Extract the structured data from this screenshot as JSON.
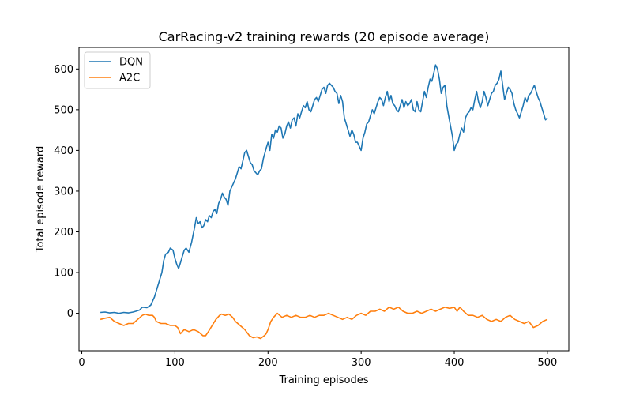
{
  "chart_data": {
    "type": "line",
    "title": "CarRacing-v2 training rewards (20 episode average)",
    "xlabel": "Training episodes",
    "ylabel": "Total episode reward",
    "xlim": [
      -3,
      523
    ],
    "ylim": [
      -92,
      653
    ],
    "xticks": [
      0,
      100,
      200,
      300,
      400,
      500
    ],
    "yticks": [
      0,
      100,
      200,
      300,
      400,
      500,
      600
    ],
    "grid": false,
    "legend": "top-left",
    "series": [
      {
        "name": "DQN",
        "color": "#1f77b4",
        "points": [
          [
            20,
            2
          ],
          [
            25,
            3
          ],
          [
            30,
            1
          ],
          [
            35,
            2
          ],
          [
            40,
            0
          ],
          [
            45,
            2
          ],
          [
            50,
            1
          ],
          [
            55,
            3
          ],
          [
            58,
            5
          ],
          [
            62,
            8
          ],
          [
            65,
            15
          ],
          [
            70,
            14
          ],
          [
            74,
            20
          ],
          [
            78,
            40
          ],
          [
            82,
            70
          ],
          [
            86,
            100
          ],
          [
            88,
            130
          ],
          [
            90,
            145
          ],
          [
            93,
            150
          ],
          [
            95,
            160
          ],
          [
            98,
            155
          ],
          [
            100,
            135
          ],
          [
            102,
            120
          ],
          [
            104,
            110
          ],
          [
            106,
            125
          ],
          [
            108,
            140
          ],
          [
            110,
            155
          ],
          [
            112,
            160
          ],
          [
            115,
            150
          ],
          [
            118,
            175
          ],
          [
            121,
            210
          ],
          [
            123,
            235
          ],
          [
            125,
            220
          ],
          [
            127,
            225
          ],
          [
            129,
            210
          ],
          [
            131,
            215
          ],
          [
            133,
            230
          ],
          [
            135,
            225
          ],
          [
            137,
            240
          ],
          [
            139,
            235
          ],
          [
            141,
            250
          ],
          [
            143,
            255
          ],
          [
            145,
            245
          ],
          [
            147,
            270
          ],
          [
            149,
            280
          ],
          [
            151,
            295
          ],
          [
            153,
            285
          ],
          [
            155,
            280
          ],
          [
            157,
            265
          ],
          [
            159,
            300
          ],
          [
            161,
            310
          ],
          [
            163,
            320
          ],
          [
            165,
            330
          ],
          [
            167,
            345
          ],
          [
            169,
            360
          ],
          [
            171,
            355
          ],
          [
            173,
            375
          ],
          [
            175,
            395
          ],
          [
            177,
            400
          ],
          [
            179,
            385
          ],
          [
            181,
            370
          ],
          [
            183,
            365
          ],
          [
            185,
            350
          ],
          [
            187,
            345
          ],
          [
            189,
            340
          ],
          [
            191,
            350
          ],
          [
            193,
            355
          ],
          [
            195,
            380
          ],
          [
            198,
            405
          ],
          [
            200,
            420
          ],
          [
            202,
            400
          ],
          [
            204,
            440
          ],
          [
            206,
            430
          ],
          [
            208,
            450
          ],
          [
            210,
            445
          ],
          [
            212,
            460
          ],
          [
            214,
            455
          ],
          [
            216,
            430
          ],
          [
            218,
            440
          ],
          [
            220,
            460
          ],
          [
            222,
            470
          ],
          [
            224,
            455
          ],
          [
            226,
            475
          ],
          [
            228,
            480
          ],
          [
            230,
            460
          ],
          [
            232,
            490
          ],
          [
            234,
            480
          ],
          [
            236,
            495
          ],
          [
            238,
            510
          ],
          [
            240,
            505
          ],
          [
            242,
            520
          ],
          [
            244,
            500
          ],
          [
            246,
            495
          ],
          [
            248,
            510
          ],
          [
            250,
            525
          ],
          [
            252,
            530
          ],
          [
            254,
            520
          ],
          [
            256,
            535
          ],
          [
            258,
            550
          ],
          [
            260,
            555
          ],
          [
            262,
            540
          ],
          [
            264,
            560
          ],
          [
            266,
            565
          ],
          [
            268,
            560
          ],
          [
            270,
            555
          ],
          [
            272,
            545
          ],
          [
            274,
            540
          ],
          [
            276,
            515
          ],
          [
            278,
            535
          ],
          [
            280,
            520
          ],
          [
            282,
            480
          ],
          [
            284,
            465
          ],
          [
            286,
            450
          ],
          [
            288,
            435
          ],
          [
            290,
            450
          ],
          [
            292,
            440
          ],
          [
            294,
            420
          ],
          [
            296,
            420
          ],
          [
            298,
            410
          ],
          [
            300,
            400
          ],
          [
            302,
            430
          ],
          [
            304,
            445
          ],
          [
            306,
            465
          ],
          [
            308,
            470
          ],
          [
            310,
            485
          ],
          [
            312,
            500
          ],
          [
            314,
            490
          ],
          [
            316,
            505
          ],
          [
            318,
            520
          ],
          [
            320,
            530
          ],
          [
            322,
            525
          ],
          [
            324,
            510
          ],
          [
            326,
            530
          ],
          [
            328,
            545
          ],
          [
            330,
            520
          ],
          [
            332,
            535
          ],
          [
            334,
            515
          ],
          [
            336,
            510
          ],
          [
            338,
            500
          ],
          [
            340,
            495
          ],
          [
            342,
            510
          ],
          [
            344,
            525
          ],
          [
            346,
            505
          ],
          [
            348,
            520
          ],
          [
            350,
            510
          ],
          [
            352,
            515
          ],
          [
            354,
            525
          ],
          [
            356,
            500
          ],
          [
            358,
            495
          ],
          [
            360,
            520
          ],
          [
            362,
            500
          ],
          [
            364,
            495
          ],
          [
            366,
            520
          ],
          [
            368,
            545
          ],
          [
            370,
            530
          ],
          [
            372,
            555
          ],
          [
            374,
            575
          ],
          [
            376,
            570
          ],
          [
            378,
            590
          ],
          [
            380,
            610
          ],
          [
            382,
            600
          ],
          [
            384,
            575
          ],
          [
            386,
            540
          ],
          [
            388,
            555
          ],
          [
            390,
            560
          ],
          [
            392,
            510
          ],
          [
            394,
            485
          ],
          [
            396,
            460
          ],
          [
            398,
            435
          ],
          [
            400,
            400
          ],
          [
            402,
            415
          ],
          [
            404,
            420
          ],
          [
            406,
            440
          ],
          [
            408,
            455
          ],
          [
            410,
            445
          ],
          [
            412,
            480
          ],
          [
            414,
            490
          ],
          [
            416,
            495
          ],
          [
            418,
            505
          ],
          [
            420,
            500
          ],
          [
            422,
            525
          ],
          [
            424,
            545
          ],
          [
            426,
            520
          ],
          [
            428,
            505
          ],
          [
            430,
            520
          ],
          [
            432,
            545
          ],
          [
            434,
            530
          ],
          [
            436,
            510
          ],
          [
            438,
            525
          ],
          [
            440,
            540
          ],
          [
            442,
            545
          ],
          [
            444,
            560
          ],
          [
            446,
            565
          ],
          [
            448,
            575
          ],
          [
            450,
            595
          ],
          [
            452,
            560
          ],
          [
            454,
            525
          ],
          [
            456,
            540
          ],
          [
            458,
            555
          ],
          [
            460,
            550
          ],
          [
            462,
            540
          ],
          [
            464,
            515
          ],
          [
            466,
            500
          ],
          [
            468,
            490
          ],
          [
            470,
            480
          ],
          [
            472,
            495
          ],
          [
            474,
            510
          ],
          [
            476,
            530
          ],
          [
            478,
            520
          ],
          [
            480,
            535
          ],
          [
            482,
            540
          ],
          [
            484,
            550
          ],
          [
            486,
            560
          ],
          [
            488,
            545
          ],
          [
            490,
            530
          ],
          [
            492,
            520
          ],
          [
            494,
            505
          ],
          [
            496,
            490
          ],
          [
            498,
            475
          ],
          [
            500,
            480
          ]
        ]
      },
      {
        "name": "A2C",
        "color": "#ff7f0e",
        "points": [
          [
            20,
            -15
          ],
          [
            25,
            -12
          ],
          [
            30,
            -10
          ],
          [
            35,
            -20
          ],
          [
            40,
            -25
          ],
          [
            45,
            -30
          ],
          [
            50,
            -25
          ],
          [
            55,
            -25
          ],
          [
            60,
            -15
          ],
          [
            65,
            -5
          ],
          [
            68,
            -2
          ],
          [
            72,
            -5
          ],
          [
            76,
            -5
          ],
          [
            78,
            -10
          ],
          [
            80,
            -20
          ],
          [
            85,
            -25
          ],
          [
            90,
            -25
          ],
          [
            95,
            -30
          ],
          [
            100,
            -30
          ],
          [
            103,
            -35
          ],
          [
            106,
            -50
          ],
          [
            110,
            -40
          ],
          [
            115,
            -45
          ],
          [
            120,
            -40
          ],
          [
            125,
            -45
          ],
          [
            130,
            -55
          ],
          [
            133,
            -55
          ],
          [
            136,
            -45
          ],
          [
            140,
            -30
          ],
          [
            144,
            -15
          ],
          [
            148,
            -5
          ],
          [
            150,
            -2
          ],
          [
            154,
            -5
          ],
          [
            158,
            -2
          ],
          [
            162,
            -10
          ],
          [
            165,
            -20
          ],
          [
            170,
            -30
          ],
          [
            175,
            -40
          ],
          [
            180,
            -55
          ],
          [
            184,
            -60
          ],
          [
            188,
            -58
          ],
          [
            192,
            -62
          ],
          [
            196,
            -55
          ],
          [
            198,
            -50
          ],
          [
            200,
            -40
          ],
          [
            203,
            -20
          ],
          [
            206,
            -10
          ],
          [
            210,
            0
          ],
          [
            215,
            -10
          ],
          [
            220,
            -5
          ],
          [
            225,
            -10
          ],
          [
            230,
            -5
          ],
          [
            235,
            -10
          ],
          [
            240,
            -10
          ],
          [
            245,
            -5
          ],
          [
            250,
            -10
          ],
          [
            255,
            -5
          ],
          [
            260,
            -5
          ],
          [
            265,
            0
          ],
          [
            270,
            -5
          ],
          [
            275,
            -10
          ],
          [
            280,
            -15
          ],
          [
            285,
            -10
          ],
          [
            290,
            -15
          ],
          [
            295,
            -5
          ],
          [
            300,
            0
          ],
          [
            305,
            -5
          ],
          [
            310,
            5
          ],
          [
            315,
            5
          ],
          [
            320,
            10
          ],
          [
            325,
            5
          ],
          [
            330,
            15
          ],
          [
            335,
            10
          ],
          [
            340,
            15
          ],
          [
            345,
            5
          ],
          [
            350,
            0
          ],
          [
            355,
            0
          ],
          [
            360,
            5
          ],
          [
            365,
            0
          ],
          [
            370,
            5
          ],
          [
            375,
            10
          ],
          [
            380,
            5
          ],
          [
            385,
            10
          ],
          [
            390,
            15
          ],
          [
            395,
            12
          ],
          [
            400,
            15
          ],
          [
            403,
            5
          ],
          [
            406,
            15
          ],
          [
            410,
            5
          ],
          [
            415,
            -5
          ],
          [
            420,
            -5
          ],
          [
            425,
            -10
          ],
          [
            430,
            -5
          ],
          [
            435,
            -15
          ],
          [
            440,
            -20
          ],
          [
            445,
            -15
          ],
          [
            450,
            -20
          ],
          [
            455,
            -10
          ],
          [
            460,
            -5
          ],
          [
            465,
            -15
          ],
          [
            470,
            -20
          ],
          [
            475,
            -25
          ],
          [
            480,
            -20
          ],
          [
            485,
            -35
          ],
          [
            490,
            -30
          ],
          [
            495,
            -20
          ],
          [
            500,
            -15
          ]
        ]
      }
    ]
  }
}
